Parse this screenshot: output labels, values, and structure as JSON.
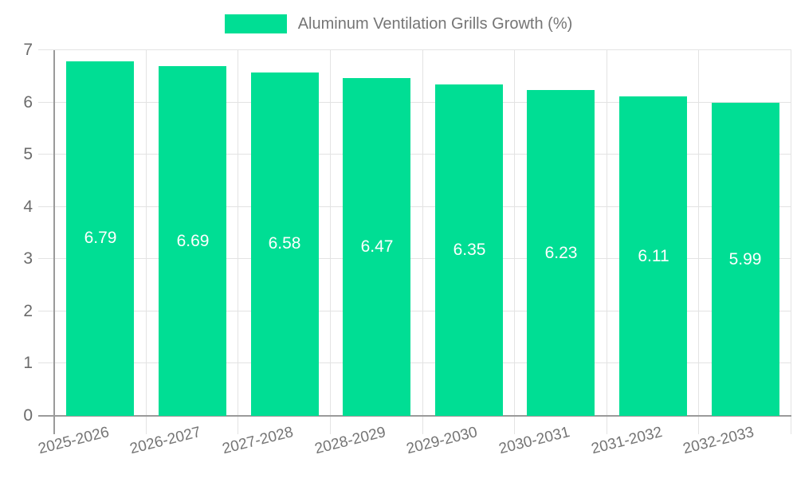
{
  "chart_data": {
    "type": "bar",
    "legend": "Aluminum Ventilation Grills Growth (%)",
    "legend_position": "top",
    "categories": [
      "2025-2026",
      "2026-2027",
      "2027-2028",
      "2028-2029",
      "2029-2030",
      "2030-2031",
      "2031-2032",
      "2032-2033"
    ],
    "values": [
      6.79,
      6.69,
      6.58,
      6.47,
      6.35,
      6.23,
      6.11,
      5.99
    ],
    "value_labels": [
      "6.79",
      "6.69",
      "6.58",
      "6.47",
      "6.35",
      "6.23",
      "6.11",
      "5.99"
    ],
    "xlabel": "",
    "ylabel": "",
    "ylim": [
      0,
      7
    ],
    "yticks": [
      0,
      1,
      2,
      3,
      4,
      5,
      6,
      7
    ],
    "grid": true,
    "colors": {
      "bar": "#00de94",
      "value_label": "#ffffff",
      "axis_line": "#9a9a9a",
      "grid_line": "#e3e3e3",
      "tick_text": "#6b6b6b",
      "x_tick_text": "#757575",
      "legend_text": "#757575"
    }
  }
}
